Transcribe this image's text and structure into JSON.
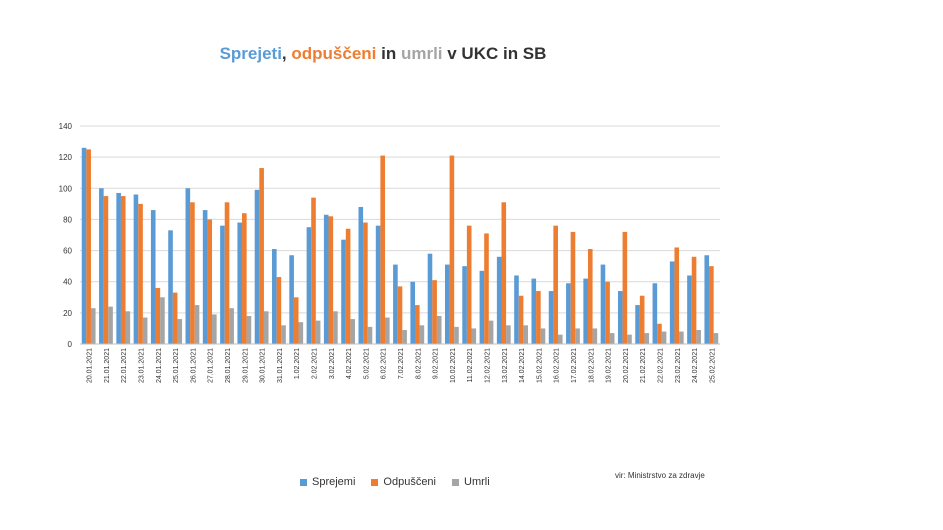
{
  "title": {
    "part1": "Sprejeti",
    "sep1": ", ",
    "part2": "odpuščeni",
    "sep2": " in ",
    "part3": "umrli",
    "part4": " v UKC in SB"
  },
  "colors": {
    "sprejeti": "#5B9BD5",
    "odpusceni": "#ED7D31",
    "umrli": "#A5A5A5",
    "title_dark": "#333333",
    "grid": "#d9d9d9"
  },
  "source": "vir: Ministrstvo za zdravje",
  "chart_data": {
    "type": "bar",
    "title": "Sprejeti, odpuščeni in umrli v UKC in SB",
    "ylim": [
      0,
      140
    ],
    "yticks": [
      0,
      20,
      40,
      60,
      80,
      100,
      120,
      140
    ],
    "grid": true,
    "legend_position": "bottom",
    "categories": [
      "20.01.2021",
      "21.01.2021",
      "22.01.2021",
      "23.01.2021",
      "24.01.2021",
      "25.01.2021",
      "26.01.2021",
      "27.01.2021",
      "28.01.2021",
      "29.01.2021",
      "30.01.2021",
      "31.01.2021",
      "1.02.2021",
      "2.02.2021",
      "3.02.2021",
      "4.02.2021",
      "5.02.2021",
      "6.02.2021",
      "7.02.2021",
      "8.02.2021",
      "9.02.2021",
      "10.02.2021",
      "11.02.2021",
      "12.02.2021",
      "13.02.2021",
      "14.02.2021",
      "15.02.2021",
      "16.02.2021",
      "17.02.2021",
      "18.02.2021",
      "19.02.2021",
      "20.02.2021",
      "21.02.2021",
      "22.02.2021",
      "23.02.2021",
      "24.02.2021",
      "25.02.2021"
    ],
    "series": [
      {
        "name": "Sprejemi",
        "values": [
          126,
          100,
          97,
          96,
          86,
          73,
          100,
          86,
          76,
          78,
          99,
          61,
          57,
          75,
          83,
          67,
          88,
          76,
          51,
          40,
          58,
          51,
          50,
          47,
          56,
          44,
          42,
          34,
          39,
          42,
          51,
          34,
          25,
          39,
          53,
          44,
          57
        ]
      },
      {
        "name": "Odpuščeni",
        "values": [
          125,
          95,
          95,
          90,
          36,
          33,
          91,
          80,
          91,
          84,
          113,
          43,
          30,
          94,
          82,
          74,
          78,
          121,
          37,
          25,
          41,
          121,
          76,
          71,
          91,
          31,
          34,
          76,
          72,
          61,
          40,
          72,
          31,
          13,
          62,
          56,
          50
        ]
      },
      {
        "name": "Umrli",
        "values": [
          23,
          24,
          21,
          17,
          30,
          16,
          25,
          19,
          23,
          18,
          21,
          12,
          14,
          15,
          21,
          16,
          11,
          17,
          9,
          12,
          18,
          11,
          10,
          15,
          12,
          12,
          10,
          6,
          10,
          10,
          7,
          6,
          7,
          8,
          8,
          9,
          7
        ]
      }
    ]
  }
}
